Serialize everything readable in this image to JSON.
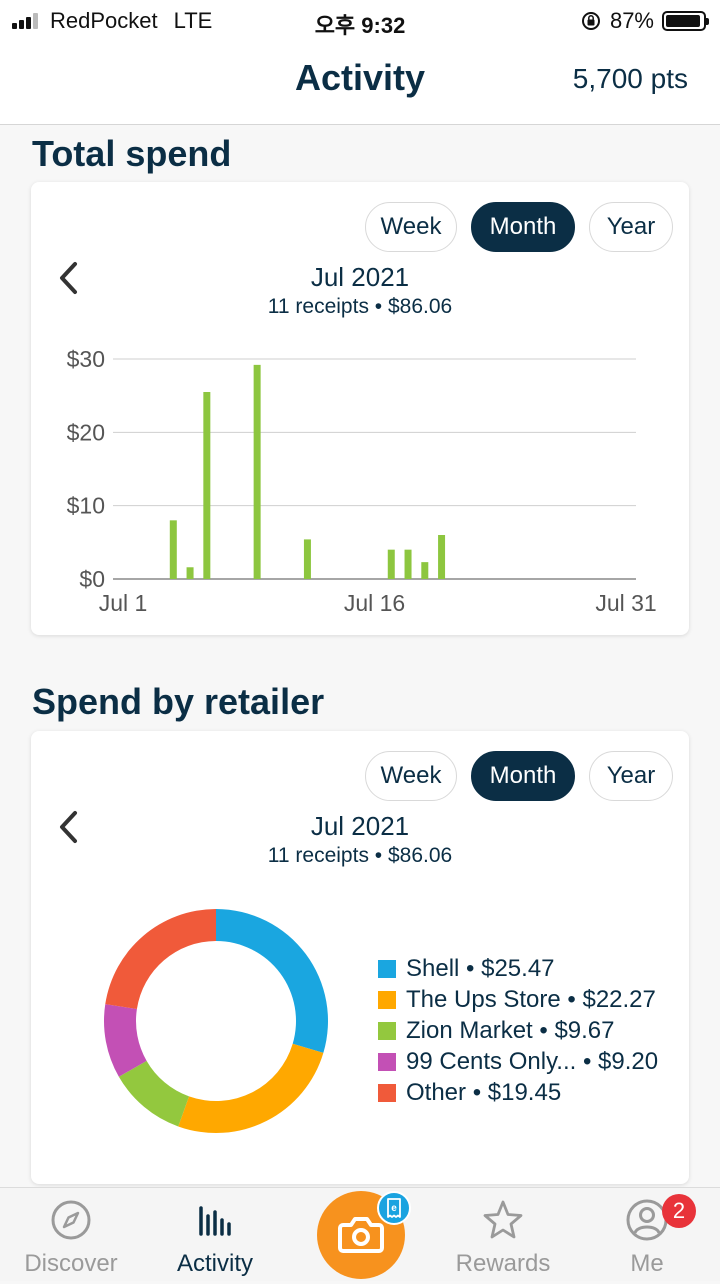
{
  "status_bar": {
    "carrier": "RedPocket",
    "network": "LTE",
    "time": "오후 9:32",
    "battery": "87%"
  },
  "header": {
    "title": "Activity",
    "points": "5,700 pts"
  },
  "total_spend": {
    "title": "Total spend",
    "toggles": [
      "Week",
      "Month",
      "Year"
    ],
    "selected_toggle": "Month",
    "period": "Jul 2021",
    "summary": "11 receipts • $86.06"
  },
  "spend_by_retailer": {
    "title": "Spend by retailer",
    "toggles": [
      "Week",
      "Month",
      "Year"
    ],
    "selected_toggle": "Month",
    "period": "Jul 2021",
    "summary": "11 receipts • $86.06",
    "legend": [
      {
        "label": "Shell • $25.47",
        "color": "#1aa6e0"
      },
      {
        "label": "The Ups Store • $22.27",
        "color": "#ffa800"
      },
      {
        "label": "Zion Market • $9.67",
        "color": "#93c83e"
      },
      {
        "label": "99 Cents Only... • $9.20",
        "color": "#c350b5"
      },
      {
        "label": "Other • $19.45",
        "color": "#f05a3a"
      }
    ]
  },
  "chart_data": [
    {
      "type": "bar",
      "title": "Total spend",
      "x_ticks": [
        "Jul 1",
        "Jul 16",
        "Jul 31"
      ],
      "y_ticks": [
        "$0",
        "$10",
        "$20",
        "$30"
      ],
      "ylim": [
        0,
        30
      ],
      "xlim": [
        1,
        31
      ],
      "grid": true,
      "color": "#8dc63f",
      "x": [
        4,
        5,
        6,
        9,
        12,
        17,
        18,
        19,
        20
      ],
      "values": [
        8.0,
        1.6,
        25.5,
        29.2,
        5.4,
        4.0,
        4.0,
        2.3,
        6.0
      ]
    },
    {
      "type": "pie",
      "title": "Spend by retailer",
      "categories": [
        "Shell",
        "The Ups Store",
        "Zion Market",
        "99 Cents Only...",
        "Other"
      ],
      "values": [
        25.47,
        22.27,
        9.67,
        9.2,
        19.45
      ],
      "colors": [
        "#1aa6e0",
        "#ffa800",
        "#93c83e",
        "#c350b5",
        "#f05a3a"
      ]
    }
  ],
  "tabs": [
    {
      "label": "Discover",
      "icon": "compass-icon",
      "active": false
    },
    {
      "label": "Activity",
      "icon": "bar-chart-icon",
      "active": true
    },
    {
      "label": "",
      "icon": "camera-icon",
      "active": false
    },
    {
      "label": "Rewards",
      "icon": "star-icon",
      "active": false
    },
    {
      "label": "Me",
      "icon": "user-icon",
      "active": false
    }
  ],
  "camera_badge_icon": "e-receipt-icon",
  "me_badge": "2"
}
